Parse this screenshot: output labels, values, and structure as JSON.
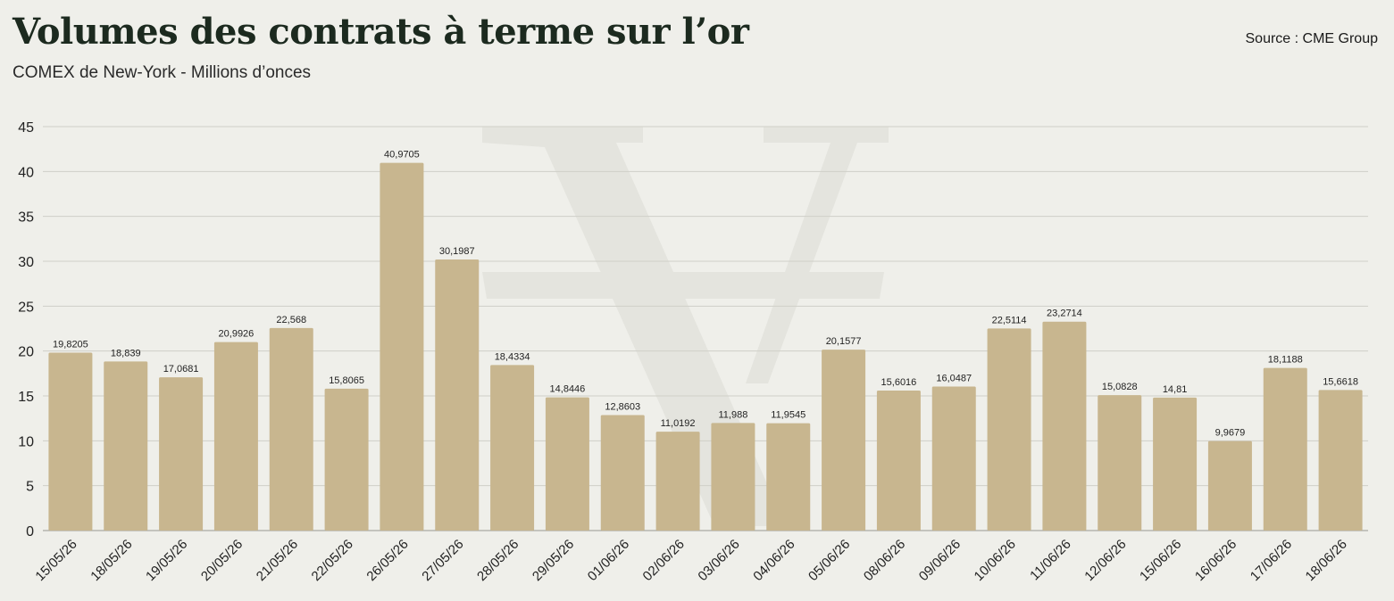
{
  "header": {
    "title": "Volumes des contrats à terme sur l’or",
    "subtitle": "COMEX de New-York - Millions d’onces",
    "source": "Source : CME Group"
  },
  "colors": {
    "bar": "#c8b68f",
    "grid": "#cfcfc8",
    "axis": "#9a9a92",
    "watermark": "#e4e4de"
  },
  "chart_data": {
    "type": "bar",
    "title": "Volumes des contrats à terme sur l’or",
    "subtitle": "COMEX de New-York - Millions d’onces",
    "xlabel": "",
    "ylabel": "",
    "ylim": [
      0,
      45
    ],
    "yticks": [
      0,
      5,
      10,
      15,
      20,
      25,
      30,
      35,
      40,
      45
    ],
    "grid": true,
    "legend": "none",
    "categories": [
      "15/05/26",
      "18/05/26",
      "19/05/26",
      "20/05/26",
      "21/05/26",
      "22/05/26",
      "26/05/26",
      "27/05/26",
      "28/05/26",
      "29/05/26",
      "01/06/26",
      "02/06/26",
      "03/06/26",
      "04/06/26",
      "05/06/26",
      "08/06/26",
      "09/06/26",
      "10/06/26",
      "11/06/26",
      "12/06/26",
      "15/06/26",
      "16/06/26",
      "17/06/26",
      "18/06/26"
    ],
    "values": [
      19.8205,
      18.839,
      17.0681,
      20.9926,
      22.568,
      15.8065,
      40.9705,
      30.1987,
      18.4334,
      14.8446,
      12.8603,
      11.0192,
      11.988,
      11.9545,
      20.1577,
      15.6016,
      16.0487,
      22.5114,
      23.2714,
      15.0828,
      14.81,
      9.9679,
      18.1188,
      15.6618
    ],
    "value_labels": [
      "19,8205",
      "18,839",
      "17,0681",
      "20,9926",
      "22,568",
      "15,8065",
      "40,9705",
      "30,1987",
      "18,4334",
      "14,8446",
      "12,8603",
      "11,0192",
      "11,988",
      "11,9545",
      "20,1577",
      "15,6016",
      "16,0487",
      "22,5114",
      "23,2714",
      "15,0828",
      "14,81",
      "9,9679",
      "18,1188",
      "15,6618"
    ]
  }
}
